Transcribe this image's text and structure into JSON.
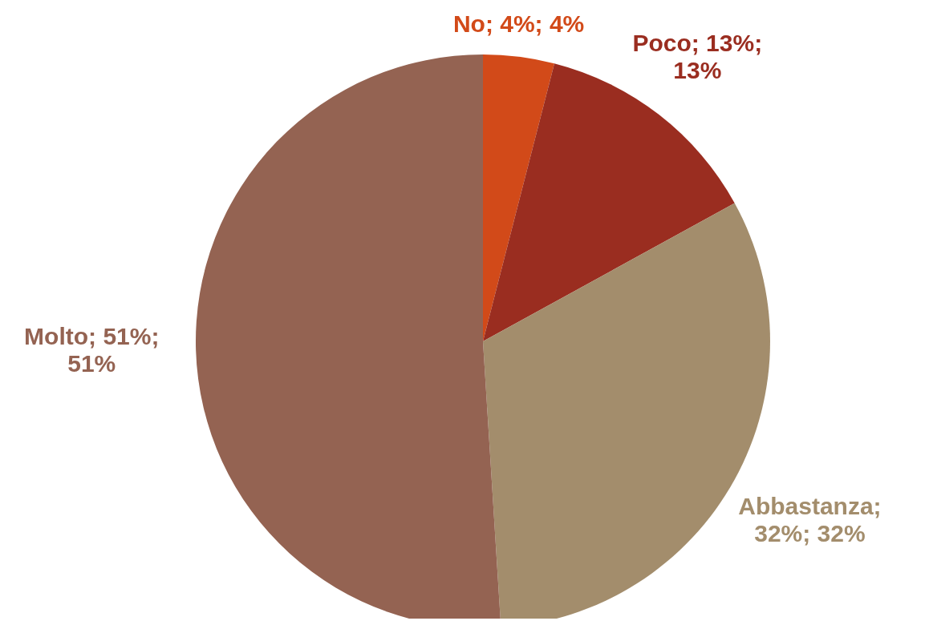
{
  "chart_data": {
    "type": "pie",
    "categories": [
      "No",
      "Poco",
      "Abbastanza",
      "Molto"
    ],
    "values": [
      4,
      13,
      32,
      51
    ],
    "colors": [
      "#d24a19",
      "#9a2d20",
      "#a38d6c",
      "#946352"
    ],
    "value_labels": [
      "; 4%; 4%",
      "; 13%; 13%",
      "; 32%; 32%",
      "; 51%; 51%"
    ],
    "legend": false
  }
}
